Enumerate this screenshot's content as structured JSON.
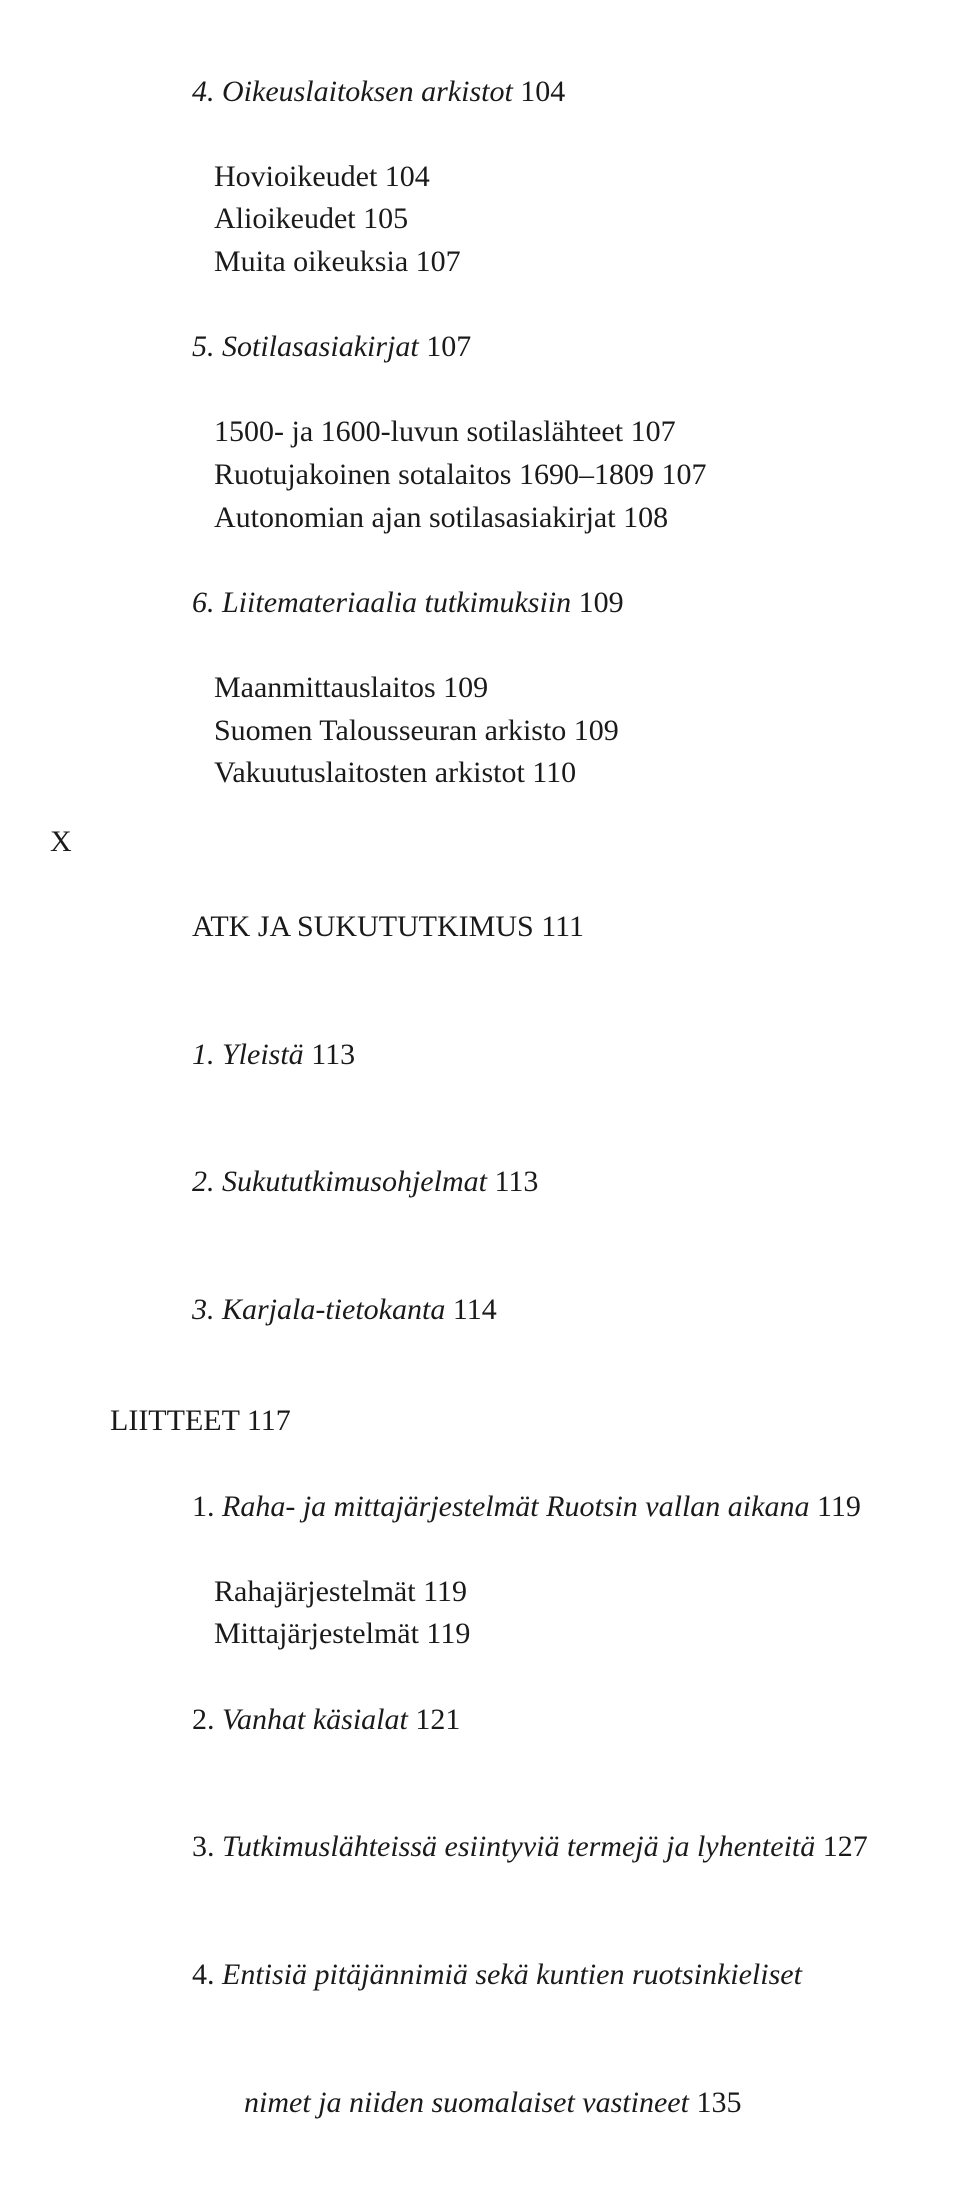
{
  "section4": {
    "title_italic": "4. Oikeuslaitoksen arkistot",
    "title_page": " 104",
    "lines": [
      {
        "text": "Hovioikeudet 104",
        "indent": "indent2"
      },
      {
        "text": "Alioikeudet 105",
        "indent": "indent2"
      },
      {
        "text": "Muita oikeuksia 107",
        "indent": "indent2"
      }
    ]
  },
  "section5": {
    "title_italic": "5. Sotilasasiakirjat",
    "title_page": " 107",
    "lines": [
      {
        "text": "1500- ja 1600-luvun sotilaslähteet 107",
        "indent": "indent2"
      },
      {
        "text": "Ruotujakoinen sotalaitos 1690–1809 107",
        "indent": "indent2"
      },
      {
        "text": "Autonomian ajan sotilasasiakirjat 108",
        "indent": "indent2"
      }
    ]
  },
  "section6": {
    "title_italic": "6. Liitemateriaalia tutkimuksiin",
    "title_page": " 109",
    "lines": [
      {
        "text": "Maanmittauslaitos 109",
        "indent": "indent2"
      },
      {
        "text": "Suomen Talousseuran arkisto 109",
        "indent": "indent2"
      },
      {
        "text": "Vakuutuslaitosten arkistot 110",
        "indent": "indent2"
      }
    ]
  },
  "chapterX": {
    "marker": "X",
    "title": "ATK JA SUKUTUTKIMUS 111",
    "items": [
      {
        "italic": "1. Yleistä",
        "page": " 113"
      },
      {
        "italic": "2. Sukututkimusohjelmat",
        "page": " 113"
      },
      {
        "italic": "3. Karjala-tietokanta",
        "page": " 114"
      }
    ]
  },
  "liitteet": {
    "title": "LIITTEET 117",
    "items": [
      {
        "pre_italic": "1. ",
        "italic": "Raha- ja mittajärjestelmät Ruotsin vallan aikana",
        "page": " 119",
        "sublines": [
          {
            "text": "Rahajärjestelmät 119"
          },
          {
            "text": "Mittajärjestelmät 119"
          }
        ]
      },
      {
        "pre_italic": "2. ",
        "italic": "Vanhat käsialat",
        "page": " 121",
        "sublines": []
      },
      {
        "pre_italic": "3. ",
        "italic": "Tutkimuslähteissä esiintyviä termejä ja lyhenteitä",
        "page": " 127",
        "sublines": []
      },
      {
        "pre_italic": "4. ",
        "italic": "Entisiä pitäjännimiä sekä kuntien ruotsinkieliset",
        "page": "",
        "cont_italic": "nimet ja niiden suomalaiset vastineet",
        "cont_page": " 135",
        "sublines": []
      }
    ]
  }
}
